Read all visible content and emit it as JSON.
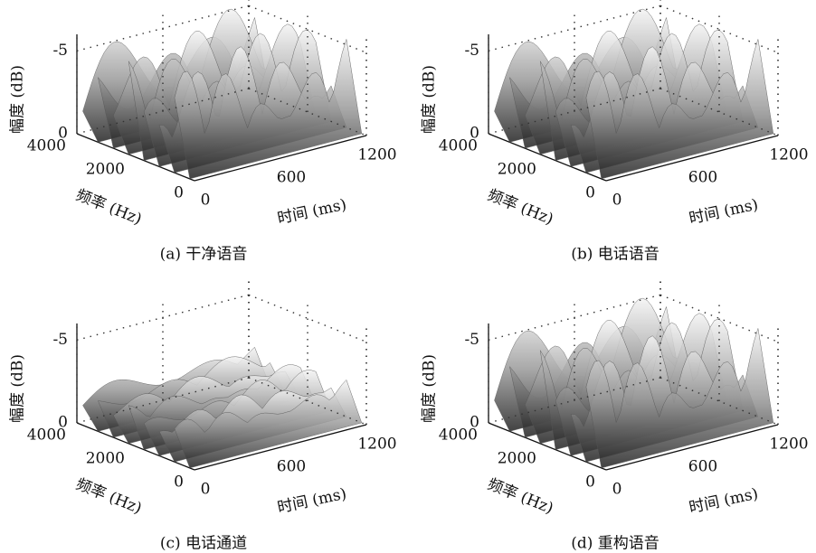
{
  "chart_data": [
    {
      "type": "surface",
      "caption": "(a) 干净语音",
      "xlabel": "时间 (ms)",
      "ylabel": "频率 (Hz)",
      "zlabel": "幅度 (dB)",
      "xlim": [
        0,
        1200
      ],
      "xticks": [
        0,
        600,
        1200
      ],
      "ylim": [
        0,
        4000
      ],
      "yticks": [
        0,
        2000,
        4000
      ],
      "zlim": [
        0,
        -6
      ],
      "zticks": [
        0,
        -5
      ]
    },
    {
      "type": "surface",
      "caption": "(b) 电话语音",
      "xlabel": "时间 (ms)",
      "ylabel": "频率 (Hz)",
      "zlabel": "幅度 (dB)",
      "xlim": [
        0,
        1200
      ],
      "xticks": [
        0,
        600,
        1200
      ],
      "ylim": [
        0,
        4000
      ],
      "yticks": [
        0,
        2000,
        4000
      ],
      "zlim": [
        0,
        -6
      ],
      "zticks": [
        0,
        -5
      ]
    },
    {
      "type": "surface",
      "caption": "(c) 电话通道",
      "xlabel": "时间 (ms)",
      "ylabel": "频率 (Hz)",
      "zlabel": "幅度 (dB)",
      "xlim": [
        0,
        1200
      ],
      "xticks": [
        0,
        600,
        1200
      ],
      "ylim": [
        0,
        4000
      ],
      "yticks": [
        0,
        2000,
        4000
      ],
      "zlim": [
        0,
        -6
      ],
      "zticks": [
        0,
        -5
      ]
    },
    {
      "type": "surface",
      "caption": "(d) 重构语音",
      "xlabel": "时间 (ms)",
      "ylabel": "频率 (Hz)",
      "zlabel": "幅度 (dB)",
      "xlim": [
        0,
        1200
      ],
      "xticks": [
        0,
        600,
        1200
      ],
      "ylim": [
        0,
        4000
      ],
      "yticks": [
        0,
        2000,
        4000
      ],
      "zlim": [
        0,
        -6
      ],
      "zticks": [
        0,
        -5
      ]
    }
  ]
}
